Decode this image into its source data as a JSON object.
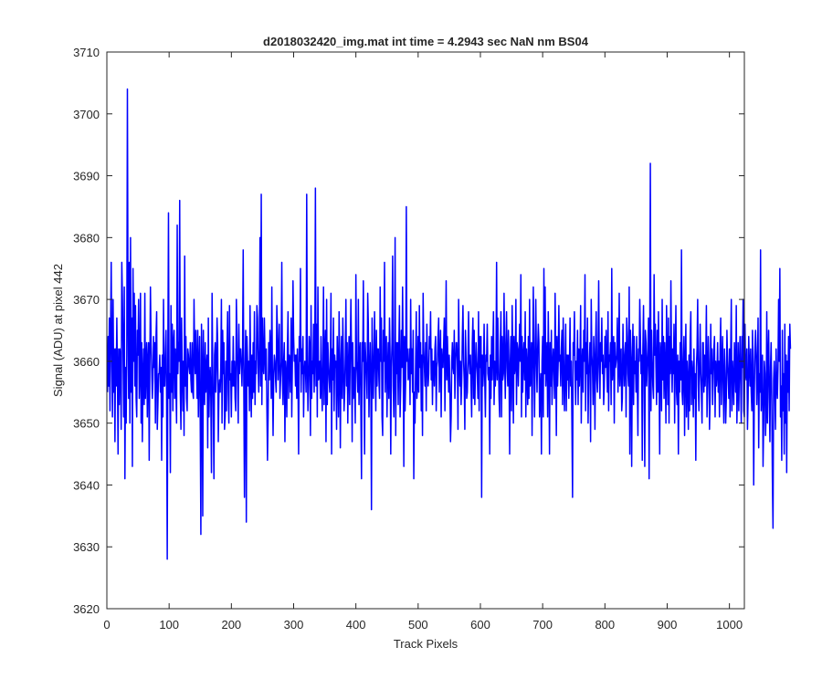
{
  "chart_data": {
    "type": "line",
    "title": "d2018032420_img.mat int time = 4.2943 sec  NaN nm BS04",
    "xlabel": "Track Pixels",
    "ylabel": "Signal (ADU) at pixel 442",
    "xlim": [
      0,
      1024
    ],
    "ylim": [
      3620,
      3710
    ],
    "xticks": [
      0,
      100,
      200,
      300,
      400,
      500,
      600,
      700,
      800,
      900,
      1000
    ],
    "yticks": [
      3620,
      3630,
      3640,
      3650,
      3660,
      3670,
      3680,
      3690,
      3700,
      3710
    ],
    "grid": false,
    "legend": "none",
    "series": [
      {
        "color": "#0000ff",
        "x_start": 1,
        "x_step": 1,
        "values": [
          3655,
          3664,
          3656,
          3667,
          3652,
          3665,
          3676,
          3660,
          3651,
          3670,
          3655,
          3662,
          3647,
          3662,
          3656,
          3667,
          3658,
          3645,
          3662,
          3653,
          3662,
          3660,
          3649,
          3676,
          3670,
          3662,
          3651,
          3672,
          3641,
          3659,
          3650,
          3661,
          3704,
          3668,
          3654,
          3676,
          3650,
          3680,
          3655,
          3667,
          3643,
          3675,
          3660,
          3671,
          3656,
          3669,
          3654,
          3651,
          3665,
          3661,
          3670,
          3654,
          3658,
          3671,
          3650,
          3663,
          3647,
          3658,
          3662,
          3653,
          3671,
          3654,
          3659,
          3663,
          3651,
          3660,
          3663,
          3644,
          3659,
          3672,
          3663,
          3659,
          3654,
          3657,
          3664,
          3659,
          3663,
          3650,
          3664,
          3668,
          3649,
          3653,
          3658,
          3658,
          3661,
          3655,
          3659,
          3644,
          3661,
          3651,
          3670,
          3656,
          3656,
          3661,
          3665,
          3654,
          3628,
          3662,
          3684,
          3654,
          3658,
          3642,
          3669,
          3655,
          3666,
          3652,
          3663,
          3665,
          3654,
          3662,
          3656,
          3650,
          3682,
          3658,
          3663,
          3660,
          3686,
          3655,
          3649,
          3667,
          3659,
          3652,
          3660,
          3648,
          3677,
          3656,
          3664,
          3654,
          3652,
          3662,
          3661,
          3659,
          3658,
          3663,
          3657,
          3655,
          3663,
          3655,
          3654,
          3670,
          3661,
          3658,
          3665,
          3659,
          3654,
          3665,
          3651,
          3659,
          3664,
          3650,
          3632,
          3666,
          3658,
          3635,
          3665,
          3656,
          3653,
          3663,
          3655,
          3659,
          3661,
          3646,
          3667,
          3651,
          3657,
          3659,
          3654,
          3642,
          3671,
          3660,
          3652,
          3641,
          3661,
          3663,
          3655,
          3659,
          3667,
          3663,
          3647,
          3655,
          3657,
          3655,
          3659,
          3670,
          3650,
          3665,
          3658,
          3663,
          3649,
          3651,
          3660,
          3652,
          3662,
          3668,
          3655,
          3650,
          3669,
          3657,
          3658,
          3651,
          3660,
          3656,
          3664,
          3656,
          3660,
          3654,
          3652,
          3670,
          3664,
          3657,
          3650,
          3666,
          3658,
          3662,
          3662,
          3659,
          3656,
          3662,
          3678,
          3655,
          3638,
          3658,
          3665,
          3634,
          3664,
          3660,
          3656,
          3660,
          3652,
          3669,
          3658,
          3651,
          3661,
          3654,
          3663,
          3655,
          3668,
          3653,
          3660,
          3658,
          3669,
          3667,
          3659,
          3655,
          3662,
          3680,
          3656,
          3687,
          3653,
          3667,
          3659,
          3658,
          3667,
          3661,
          3657,
          3662,
          3653,
          3644,
          3651,
          3663,
          3657,
          3665,
          3661,
          3654,
          3672,
          3657,
          3648,
          3658,
          3661,
          3660,
          3657,
          3655,
          3669,
          3665,
          3657,
          3661,
          3666,
          3654,
          3657,
          3660,
          3676,
          3658,
          3653,
          3660,
          3663,
          3647,
          3660,
          3658,
          3651,
          3662,
          3668,
          3654,
          3661,
          3660,
          3655,
          3667,
          3651,
          3660,
          3673,
          3664,
          3660,
          3661,
          3656,
          3661,
          3654,
          3662,
          3657,
          3645,
          3664,
          3660,
          3675,
          3655,
          3662,
          3658,
          3664,
          3651,
          3658,
          3660,
          3659,
          3655,
          3687,
          3660,
          3652,
          3657,
          3664,
          3662,
          3648,
          3669,
          3654,
          3660,
          3658,
          3666,
          3655,
          3661,
          3688,
          3656,
          3666,
          3651,
          3672,
          3657,
          3658,
          3660,
          3654,
          3664,
          3656,
          3652,
          3660,
          3672,
          3653,
          3661,
          3665,
          3647,
          3670,
          3653,
          3663,
          3660,
          3657,
          3655,
          3660,
          3671,
          3645,
          3662,
          3657,
          3667,
          3652,
          3661,
          3659,
          3660,
          3649,
          3664,
          3659,
          3651,
          3668,
          3661,
          3646,
          3659,
          3664,
          3654,
          3667,
          3660,
          3652,
          3655,
          3661,
          3670,
          3656,
          3663,
          3650,
          3659,
          3664,
          3653,
          3662,
          3670,
          3661,
          3647,
          3663,
          3654,
          3659,
          3657,
          3650,
          3674,
          3660,
          3658,
          3655,
          3670,
          3653,
          3661,
          3663,
          3652,
          3641,
          3663,
          3660,
          3673,
          3656,
          3645,
          3663,
          3660,
          3658,
          3654,
          3671,
          3666,
          3651,
          3658,
          3663,
          3657,
          3636,
          3667,
          3660,
          3654,
          3660,
          3668,
          3659,
          3652,
          3665,
          3656,
          3662,
          3662,
          3657,
          3654,
          3672,
          3660,
          3667,
          3651,
          3648,
          3665,
          3660,
          3676,
          3655,
          3662,
          3664,
          3651,
          3659,
          3663,
          3654,
          3667,
          3661,
          3645,
          3659,
          3663,
          3677,
          3656,
          3651,
          3659,
          3680,
          3648,
          3663,
          3658,
          3663,
          3653,
          3662,
          3669,
          3651,
          3656,
          3665,
          3659,
          3672,
          3660,
          3643,
          3664,
          3652,
          3657,
          3685,
          3660,
          3662,
          3657,
          3658,
          3662,
          3653,
          3670,
          3658,
          3662,
          3655,
          3665,
          3641,
          3655,
          3650,
          3660,
          3668,
          3654,
          3656,
          3664,
          3655,
          3669,
          3659,
          3663,
          3652,
          3661,
          3648,
          3671,
          3662,
          3659,
          3656,
          3663,
          3652,
          3666,
          3660,
          3656,
          3658,
          3664,
          3662,
          3668,
          3657,
          3662,
          3653,
          3660,
          3660,
          3656,
          3662,
          3664,
          3652,
          3659,
          3660,
          3664,
          3667,
          3655,
          3660,
          3665,
          3651,
          3662,
          3659,
          3659,
          3663,
          3667,
          3652,
          3661,
          3673,
          3657,
          3664,
          3659,
          3655,
          3661,
          3656,
          3647,
          3651,
          3660,
          3663,
          3659,
          3658,
          3665,
          3654,
          3659,
          3663,
          3663,
          3660,
          3649,
          3670,
          3661,
          3656,
          3660,
          3653,
          3657,
          3664,
          3669,
          3660,
          3657,
          3649,
          3665,
          3660,
          3654,
          3655,
          3660,
          3668,
          3660,
          3658,
          3661,
          3656,
          3651,
          3663,
          3667,
          3654,
          3665,
          3653,
          3658,
          3663,
          3660,
          3658,
          3654,
          3668,
          3652,
          3664,
          3659,
          3664,
          3638,
          3661,
          3656,
          3659,
          3666,
          3657,
          3651,
          3661,
          3660,
          3666,
          3658,
          3657,
          3659,
          3645,
          3661,
          3654,
          3664,
          3657,
          3662,
          3668,
          3653,
          3660,
          3656,
          3659,
          3676,
          3657,
          3667,
          3660,
          3654,
          3651,
          3663,
          3668,
          3651,
          3664,
          3657,
          3658,
          3671,
          3660,
          3654,
          3663,
          3668,
          3659,
          3656,
          3665,
          3658,
          3645,
          3660,
          3664,
          3652,
          3669,
          3661,
          3650,
          3664,
          3658,
          3659,
          3670,
          3653,
          3663,
          3662,
          3656,
          3661,
          3666,
          3660,
          3674,
          3651,
          3664,
          3655,
          3661,
          3663,
          3657,
          3668,
          3651,
          3662,
          3659,
          3653,
          3664,
          3654,
          3670,
          3656,
          3658,
          3663,
          3648,
          3660,
          3672,
          3660,
          3651,
          3661,
          3670,
          3660,
          3655,
          3662,
          3666,
          3663,
          3651,
          3655,
          3658,
          3645,
          3660,
          3664,
          3651,
          3675,
          3658,
          3672,
          3656,
          3660,
          3663,
          3651,
          3668,
          3660,
          3645,
          3663,
          3656,
          3665,
          3653,
          3659,
          3662,
          3659,
          3654,
          3671,
          3661,
          3648,
          3664,
          3656,
          3660,
          3669,
          3660,
          3661,
          3656,
          3662,
          3665,
          3653,
          3667,
          3659,
          3652,
          3658,
          3666,
          3652,
          3661,
          3657,
          3661,
          3654,
          3659,
          3667,
          3656,
          3660,
          3650,
          3638,
          3663,
          3661,
          3668,
          3659,
          3653,
          3660,
          3657,
          3665,
          3653,
          3662,
          3656,
          3660,
          3669,
          3650,
          3659,
          3662,
          3655,
          3665,
          3660,
          3674,
          3652,
          3663,
          3658,
          3667,
          3650,
          3658,
          3660,
          3663,
          3647,
          3670,
          3661,
          3659,
          3653,
          3664,
          3660,
          3649,
          3662,
          3668,
          3657,
          3655,
          3661,
          3673,
          3659,
          3654,
          3663,
          3660,
          3667,
          3658,
          3661,
          3653,
          3656,
          3664,
          3659,
          3665,
          3659,
          3655,
          3668,
          3652,
          3661,
          3660,
          3663,
          3653,
          3675,
          3657,
          3660,
          3664,
          3650,
          3663,
          3659,
          3660,
          3661,
          3667,
          3655,
          3659,
          3671,
          3656,
          3660,
          3662,
          3652,
          3654,
          3666,
          3660,
          3656,
          3661,
          3663,
          3651,
          3667,
          3664,
          3658,
          3656,
          3672,
          3645,
          3665,
          3660,
          3643,
          3660,
          3666,
          3653,
          3664,
          3658,
          3660,
          3655,
          3664,
          3657,
          3648,
          3662,
          3660,
          3670,
          3664,
          3658,
          3661,
          3644,
          3662,
          3669,
          3658,
          3643,
          3665,
          3663,
          3656,
          3659,
          3662,
          3667,
          3641,
          3663,
          3692,
          3652,
          3665,
          3660,
          3656,
          3654,
          3674,
          3661,
          3666,
          3659,
          3653,
          3665,
          3655,
          3668,
          3658,
          3645,
          3663,
          3661,
          3652,
          3670,
          3657,
          3664,
          3654,
          3663,
          3659,
          3650,
          3669,
          3660,
          3653,
          3667,
          3650,
          3664,
          3658,
          3673,
          3660,
          3655,
          3662,
          3658,
          3666,
          3650,
          3661,
          3669,
          3655,
          3653,
          3661,
          3645,
          3660,
          3655,
          3663,
          3657,
          3678,
          3655,
          3653,
          3660,
          3664,
          3648,
          3659,
          3666,
          3651,
          3660,
          3657,
          3649,
          3661,
          3652,
          3664,
          3668,
          3653,
          3660,
          3658,
          3651,
          3662,
          3654,
          3658,
          3644,
          3659,
          3662,
          3670,
          3656,
          3652,
          3660,
          3666,
          3658,
          3655,
          3650,
          3663,
          3663,
          3655,
          3661,
          3656,
          3660,
          3669,
          3651,
          3657,
          3664,
          3660,
          3649,
          3654,
          3666,
          3658,
          3662,
          3653,
          3658,
          3662,
          3664,
          3651,
          3660,
          3656,
          3658,
          3663,
          3655,
          3660,
          3651,
          3662,
          3667,
          3653,
          3659,
          3664,
          3656,
          3650,
          3662,
          3658,
          3650,
          3654,
          3665,
          3660,
          3657,
          3654,
          3662,
          3651,
          3661,
          3670,
          3652,
          3660,
          3657,
          3653,
          3663,
          3659,
          3655,
          3669,
          3650,
          3656,
          3663,
          3652,
          3659,
          3664,
          3657,
          3650,
          3664,
          3659,
          3670,
          3652,
          3651,
          3666,
          3658,
          3657,
          3662,
          3649,
          3654,
          3664,
          3659,
          3656,
          3662,
          3655,
          3652,
          3665,
          3660,
          3640,
          3655,
          3662,
          3665,
          3661,
          3653,
          3659,
          3667,
          3646,
          3658,
          3655,
          3678,
          3652,
          3656,
          3661,
          3643,
          3650,
          3660,
          3658,
          3648,
          3652,
          3668,
          3650,
          3660,
          3665,
          3654,
          3647,
          3659,
          3663,
          3654,
          3641,
          3633,
          3657,
          3660,
          3655,
          3649,
          3662,
          3656,
          3654,
          3659,
          3670,
          3660,
          3675,
          3651,
          3656,
          3644,
          3665,
          3652,
          3658,
          3645,
          3666,
          3650,
          3661,
          3642,
          3660,
          3655,
          3664,
          3652,
          3666,
          3662
        ]
      }
    ]
  }
}
